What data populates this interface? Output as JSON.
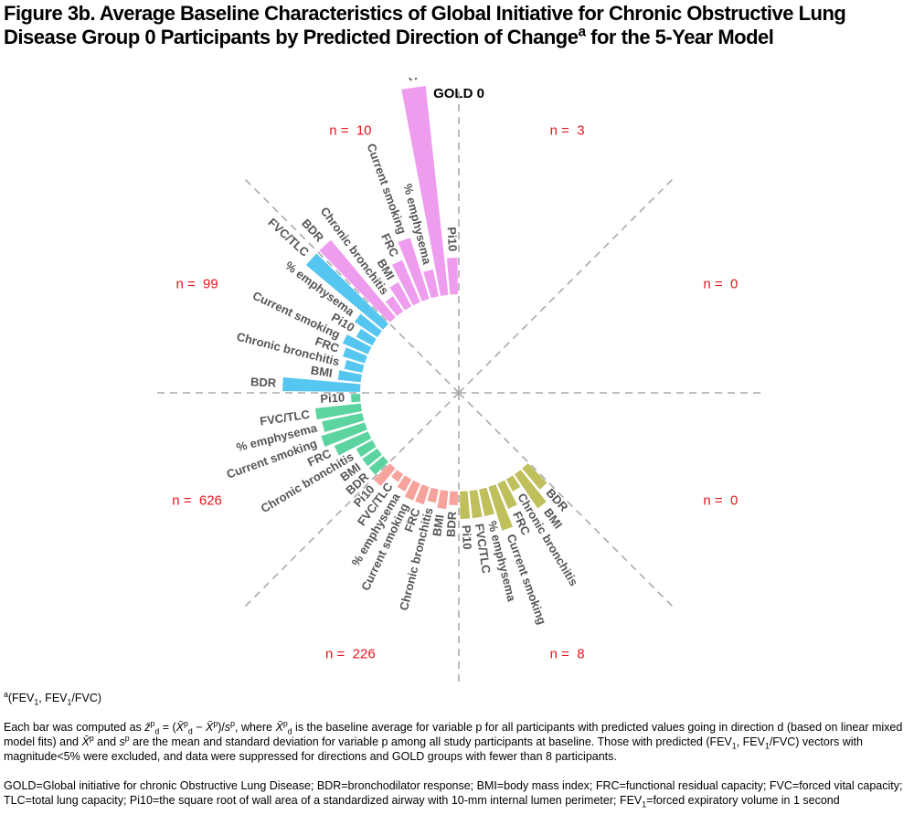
{
  "title": [
    {
      "t": "Figure 3b. Average Baseline Characteristics of Global Initiative for Chronic Obstructive Lung Disease Group 0 Participants by Predicted Direction of Change"
    },
    {
      "t": "a",
      "s": "sup"
    },
    {
      "t": " for the 5-Year Model"
    }
  ],
  "chart_data": {
    "type": "radial_bar",
    "title": "GOLD 0",
    "sectors": [
      {
        "n_label": "n =  3"
      },
      {
        "n_label": "n =  0"
      },
      {
        "n_label": "n =  0"
      },
      {
        "n_label": "n =  8",
        "color": "#bfbf5c",
        "variables": [
          "BDR",
          "BMI",
          "Chronic bronchitis",
          "FRC",
          "Current smoking",
          "% emphysema",
          "FVC/TLC",
          "Pi10"
        ],
        "values": [
          0.3,
          0.45,
          0.15,
          0.3,
          0.5,
          0.3,
          0.3,
          0.3
        ]
      },
      {
        "n_label": "n =  226",
        "color": "#f6a39c",
        "variables": [
          "BDR",
          "BMI",
          "Chronic bronchitis",
          "FRC",
          "Current smoking",
          "% emphysema",
          "FVC/TLC",
          "Pi10"
        ],
        "values": [
          0.15,
          0.2,
          0.15,
          0.2,
          0.2,
          0.15,
          0.1,
          0.25
        ]
      },
      {
        "n_label": "n =  626",
        "color": "#5cd4a0",
        "variables": [
          "BDR",
          "BMI",
          "Chronic bronchitis",
          "FRC",
          "Current smoking",
          "% emphysema",
          "FVC/TLC",
          "Pi10"
        ],
        "values": [
          0.2,
          0.2,
          0.2,
          0.4,
          0.5,
          0.45,
          0.5,
          0.1
        ]
      },
      {
        "n_label": "n =  99",
        "color": "#55c6f0",
        "variables": [
          "BDR",
          "BMI",
          "Chronic bronchitis",
          "FRC",
          "Current smoking",
          "Pi10",
          "% emphysema",
          "FVC/TLC"
        ],
        "values": [
          0.85,
          0.25,
          0.2,
          0.25,
          0.3,
          0.2,
          0.3,
          1.1
        ]
      },
      {
        "n_label": "n =  10",
        "color": "#ee9cee",
        "variables": [
          "BDR",
          "Chronic bronchitis",
          "BMI",
          "FRC",
          "Current smoking",
          "% emphysema",
          "FVC/TLC",
          "Pi10"
        ],
        "values": [
          1.1,
          0.2,
          0.3,
          0.5,
          0.7,
          0.3,
          2.3,
          0.4
        ]
      }
    ]
  },
  "footnotes": [
    [
      {
        "t": "a",
        "s": "sup"
      },
      {
        "t": "(FEV"
      },
      {
        "t": "1",
        "s": "sub"
      },
      {
        "t": ", FEV"
      },
      {
        "t": "1",
        "s": "sub"
      },
      {
        "t": "/FVC)"
      }
    ],
    [
      {
        "t": "Each bar was computed as "
      },
      {
        "t": "z̄",
        "s": "i"
      },
      {
        "t": "p",
        "s": "sup"
      },
      {
        "t": "d",
        "s": "sub"
      },
      {
        "t": " = ("
      },
      {
        "t": "X̄",
        "s": "i"
      },
      {
        "t": "p",
        "s": "sup"
      },
      {
        "t": "d",
        "s": "sub"
      },
      {
        "t": " − "
      },
      {
        "t": "X̄",
        "s": "i"
      },
      {
        "t": "p",
        "s": "sup"
      },
      {
        "t": ")/"
      },
      {
        "t": "s",
        "s": "i"
      },
      {
        "t": "p",
        "s": "sup"
      },
      {
        "t": ", where  "
      },
      {
        "t": "X̄",
        "s": "i"
      },
      {
        "t": "p",
        "s": "sup"
      },
      {
        "t": "d",
        "s": "sub"
      },
      {
        "t": " is the baseline average for variable p for all participants with predicted values going in direction d (based on linear mixed model fits) and "
      },
      {
        "t": "X̄",
        "s": "i"
      },
      {
        "t": "p",
        "s": "sup"
      },
      {
        "t": " and "
      },
      {
        "t": "s",
        "s": "i"
      },
      {
        "t": "p",
        "s": "sup"
      },
      {
        "t": " are the mean and standard deviation for variable p among all study participants at baseline.  Those with predicted (FEV"
      },
      {
        "t": "1",
        "s": "sub"
      },
      {
        "t": ", FEV"
      },
      {
        "t": "1",
        "s": "sub"
      },
      {
        "t": "/FVC) vectors with magnitude<5% were excluded, and data were suppressed for directions and GOLD groups with fewer than 8 participants."
      }
    ],
    [
      {
        "t": "GOLD=Global initiative for chronic Obstructive Lung Disease; BDR=bronchodilator response; BMI=body mass index; FRC=functional residual capacity; FVC=forced vital capacity; TLC=total lung capacity; Pi10=the square root of wall area of a standardized airway with 10-mm internal lumen perimeter; FEV"
      },
      {
        "t": "1",
        "s": "sub"
      },
      {
        "t": "=forced expiratory volume in 1 second"
      }
    ]
  ]
}
